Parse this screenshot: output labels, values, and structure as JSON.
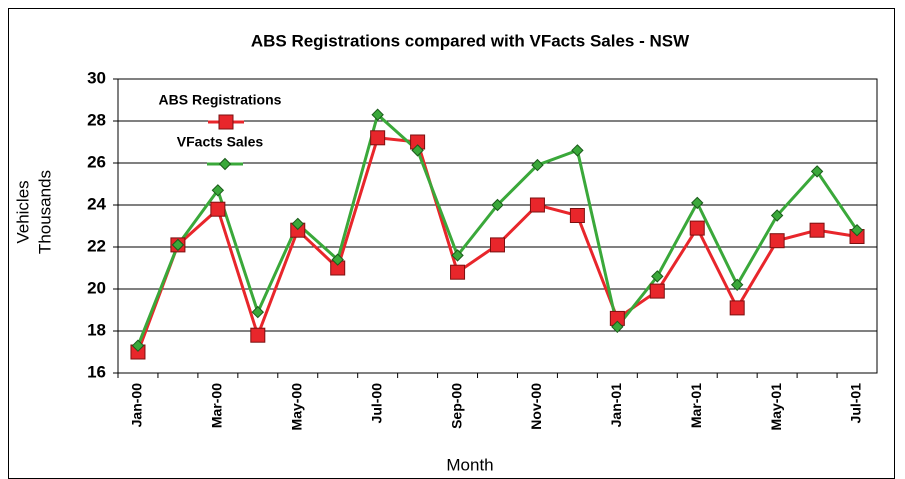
{
  "chart_data": {
    "type": "line",
    "title": "ABS Registrations compared with VFacts Sales - NSW",
    "x_label": "Month",
    "y_label": [
      "Vehicles",
      "Thousands"
    ],
    "categories": [
      "Jan-00",
      null,
      "Mar-00",
      null,
      "May-00",
      null,
      "Jul-00",
      null,
      "Sep-00",
      null,
      "Nov-00",
      null,
      "Jan-01",
      null,
      "Mar-01",
      null,
      "May-01",
      null,
      "Jul-01"
    ],
    "series": [
      {
        "name": "ABS Registrations",
        "color": "#e8262b",
        "marker": "square",
        "values": [
          17.0,
          22.1,
          23.8,
          17.8,
          22.8,
          21.0,
          27.2,
          27.0,
          20.8,
          22.1,
          24.0,
          23.5,
          18.6,
          19.9,
          22.9,
          19.1,
          22.3,
          22.8,
          22.5
        ]
      },
      {
        "name": "VFacts Sales",
        "color": "#3aa83a",
        "marker": "diamond",
        "values": [
          17.3,
          22.1,
          24.7,
          18.9,
          23.1,
          21.4,
          28.3,
          26.6,
          21.6,
          24.0,
          25.9,
          26.6,
          18.2,
          20.6,
          24.1,
          20.2,
          23.5,
          25.6,
          22.8
        ]
      }
    ],
    "ylim": [
      16,
      30
    ],
    "yticks": [
      16,
      18,
      20,
      22,
      24,
      26,
      28,
      30
    ],
    "grid": true,
    "legend": "top-left"
  }
}
